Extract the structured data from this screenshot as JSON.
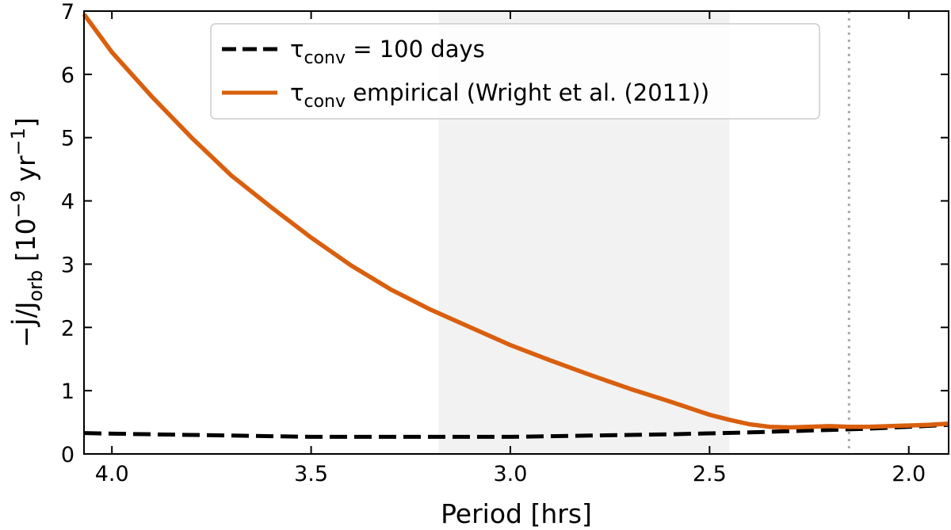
{
  "chart_data": {
    "type": "line",
    "xlabel": "Period [hrs]",
    "ylabel": {
      "prefix": "−J̇/J",
      "subscript": "orb",
      "middle": " [10",
      "superscript1": "−9",
      "unit": " yr",
      "superscript2": "−1",
      "suffix": "]"
    },
    "xlim": [
      4.07,
      1.9
    ],
    "ylim": [
      0,
      7
    ],
    "x_reversed": true,
    "x_ticks": [
      4.0,
      3.5,
      3.0,
      2.5,
      2.0
    ],
    "x_tick_labels": [
      "4.0",
      "3.5",
      "3.0",
      "2.5",
      "2.0"
    ],
    "y_ticks": [
      0,
      1,
      2,
      3,
      4,
      5,
      6,
      7
    ],
    "y_tick_labels": [
      "0",
      "1",
      "2",
      "3",
      "4",
      "5",
      "6",
      "7"
    ],
    "shaded_band": {
      "x_start": 3.18,
      "x_end": 2.45,
      "color": "#f2f2f2"
    },
    "vertical_line": {
      "x": 2.15,
      "style": "dotted",
      "color": "#aaaaaa"
    },
    "legend": {
      "location": "upper-center"
    },
    "series": [
      {
        "name": "τconv = 100 days",
        "legend_main": "τ",
        "legend_sub": "conv",
        "legend_rest": " = 100 days",
        "color": "#000000",
        "style": "dashed",
        "x": [
          4.07,
          4.0,
          3.8,
          3.6,
          3.5,
          3.3,
          3.1,
          3.0,
          2.8,
          2.6,
          2.4,
          2.2,
          2.1,
          2.0,
          1.9
        ],
        "y": [
          0.33,
          0.32,
          0.3,
          0.28,
          0.27,
          0.27,
          0.27,
          0.27,
          0.29,
          0.31,
          0.34,
          0.38,
          0.4,
          0.43,
          0.46
        ]
      },
      {
        "name": "τconv empirical (Wright et al. (2011))",
        "legend_main": "τ",
        "legend_sub": "conv",
        "legend_rest": " empirical (Wright et al. (2011))",
        "color": "#d95f0e",
        "style": "solid",
        "x": [
          4.07,
          4.0,
          3.9,
          3.8,
          3.7,
          3.6,
          3.5,
          3.4,
          3.3,
          3.2,
          3.1,
          3.0,
          2.9,
          2.8,
          2.7,
          2.6,
          2.5,
          2.45,
          2.4,
          2.35,
          2.3,
          2.25,
          2.2,
          2.15,
          2.1,
          2.05,
          2.0,
          1.95,
          1.9
        ],
        "y": [
          6.95,
          6.35,
          5.65,
          5.0,
          4.4,
          3.9,
          3.42,
          2.98,
          2.6,
          2.28,
          2.0,
          1.72,
          1.48,
          1.25,
          1.03,
          0.83,
          0.62,
          0.54,
          0.47,
          0.43,
          0.42,
          0.43,
          0.44,
          0.43,
          0.43,
          0.44,
          0.45,
          0.46,
          0.48
        ]
      }
    ]
  }
}
